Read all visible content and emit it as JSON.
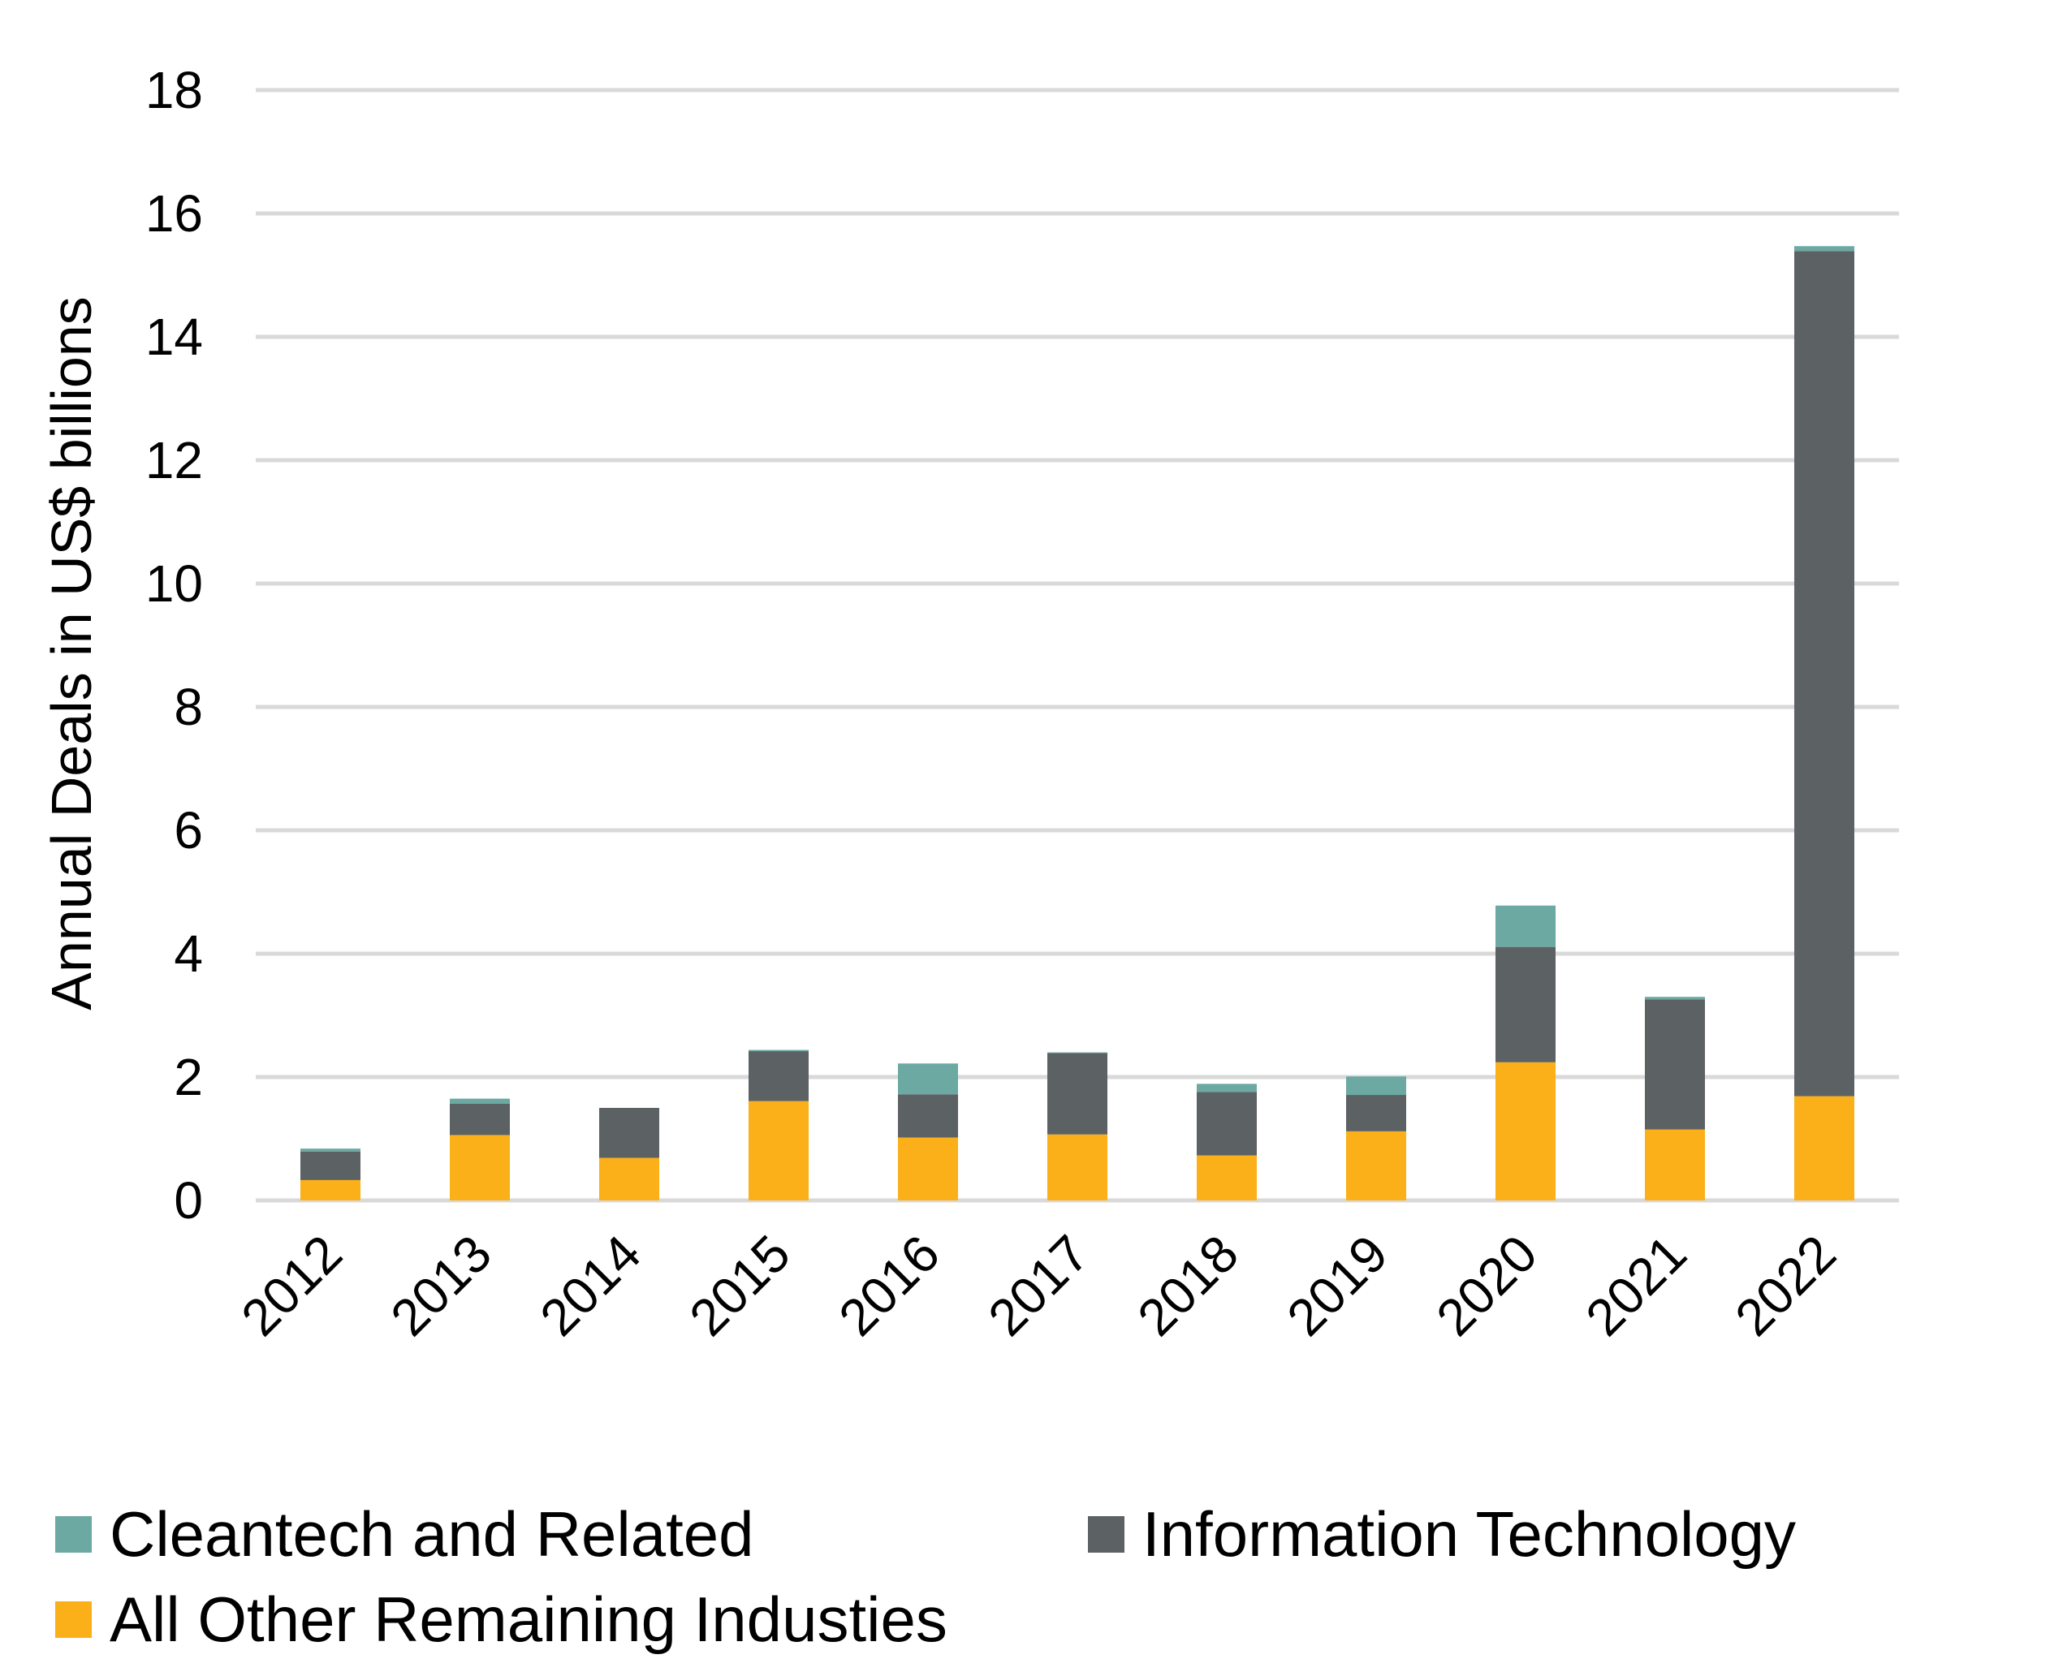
{
  "chart_data": {
    "type": "bar",
    "stacked": true,
    "title": "",
    "xlabel": "",
    "ylabel": "Annual Deals in US$ billions",
    "ylim": [
      0,
      18
    ],
    "yticks": [
      0,
      2,
      4,
      6,
      8,
      10,
      12,
      14,
      16,
      18
    ],
    "grid": true,
    "legend_position": "bottom",
    "categories": [
      "2012",
      "2013",
      "2014",
      "2015",
      "2016",
      "2017",
      "2018",
      "2019",
      "2020",
      "2021",
      "2022"
    ],
    "series": [
      {
        "name": "All Other Remaining Industies",
        "color": "#FBAF19",
        "values": [
          0.33,
          1.06,
          0.69,
          1.61,
          1.02,
          1.07,
          0.73,
          1.12,
          2.24,
          1.15,
          1.69
        ]
      },
      {
        "name": "Information Technology",
        "color": "#5C6164",
        "values": [
          0.46,
          0.51,
          0.81,
          0.81,
          0.7,
          1.32,
          1.03,
          0.59,
          1.87,
          2.11,
          13.7
        ]
      },
      {
        "name": "Cleantech and Related",
        "color": "#6BA9A2",
        "values": [
          0.05,
          0.08,
          0.0,
          0.02,
          0.5,
          0.01,
          0.13,
          0.3,
          0.67,
          0.04,
          0.08
        ]
      }
    ]
  },
  "legend": {
    "items": [
      {
        "label": "Cleantech and Related",
        "color": "#6BA9A2"
      },
      {
        "label": "Information Technology",
        "color": "#5C6164"
      },
      {
        "label": "All Other Remaining Industies",
        "color": "#FBAF19"
      }
    ]
  },
  "colors": {
    "grid": "#D9D9D9"
  }
}
